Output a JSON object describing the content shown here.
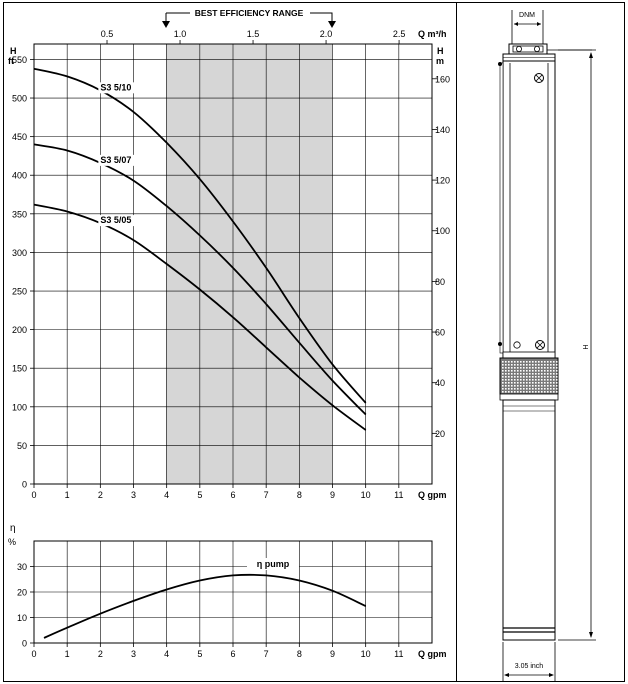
{
  "best_efficiency_label": "BEST EFFICIENCY RANGE",
  "head_chart": {
    "h_ft_label": "H",
    "h_ft_unit": "ft",
    "h_m_label": "H",
    "h_m_unit": "m",
    "q_m3h_label": "Q m³/h",
    "q_gpm_label": "Q gpm",
    "gpm_ticks": [
      "0",
      "1",
      "2",
      "3",
      "4",
      "5",
      "6",
      "7",
      "8",
      "9",
      "10",
      "11"
    ],
    "m3h_ticks": [
      "0.5",
      "1.0",
      "1.5",
      "2.0",
      "2.5"
    ],
    "ft_ticks": [
      "0",
      "50",
      "100",
      "150",
      "200",
      "250",
      "300",
      "350",
      "400",
      "450",
      "500",
      "550"
    ],
    "m_ticks": [
      "20",
      "40",
      "60",
      "80",
      "100",
      "120",
      "140",
      "160"
    ]
  },
  "eff_chart": {
    "eta_label": "η",
    "eta_unit": "%",
    "q_gpm_label": "Q gpm",
    "gpm_ticks": [
      "0",
      "1",
      "2",
      "3",
      "4",
      "5",
      "6",
      "7",
      "8",
      "9",
      "10",
      "11"
    ],
    "pct_ticks": [
      "0",
      "10",
      "20",
      "30"
    ],
    "curve_label": "η pump"
  },
  "chart_data": [
    {
      "type": "line",
      "xlabel": "Q gpm",
      "x2label": "Q m³/h",
      "ylabel": "H ft",
      "y2label": "H m",
      "xlim": [
        0,
        12
      ],
      "ylim": [
        0,
        570
      ],
      "best_efficiency_range_gpm": [
        4,
        9
      ],
      "grid": true,
      "series": [
        {
          "name": "S3 5/10",
          "x": [
            0,
            1,
            2,
            3,
            4,
            5,
            6,
            7,
            8,
            9,
            10
          ],
          "y": [
            538,
            528,
            510,
            482,
            442,
            395,
            340,
            280,
            215,
            155,
            105
          ]
        },
        {
          "name": "S3 5/07",
          "x": [
            0,
            1,
            2,
            3,
            4,
            5,
            6,
            7,
            8,
            9,
            10
          ],
          "y": [
            440,
            432,
            416,
            393,
            360,
            322,
            280,
            233,
            183,
            134,
            90
          ]
        },
        {
          "name": "S3 5/05",
          "x": [
            0,
            1,
            2,
            3,
            4,
            5,
            6,
            7,
            8,
            9,
            10
          ],
          "y": [
            362,
            353,
            338,
            316,
            285,
            252,
            216,
            177,
            138,
            102,
            70
          ]
        }
      ]
    },
    {
      "type": "line",
      "xlabel": "Q gpm",
      "ylabel": "η %",
      "xlim": [
        0,
        12
      ],
      "ylim": [
        0,
        40
      ],
      "grid": true,
      "series": [
        {
          "name": "η pump",
          "x": [
            0.3,
            1,
            2,
            3,
            4,
            5,
            6,
            7,
            8,
            9,
            10
          ],
          "y": [
            2,
            6,
            11.5,
            16.5,
            21,
            24.5,
            26.5,
            26.5,
            24.5,
            20.5,
            14.5
          ]
        }
      ]
    }
  ],
  "drawing": {
    "dnm_label": "DNM",
    "h_label": "H",
    "width_label": "3.05 inch"
  }
}
